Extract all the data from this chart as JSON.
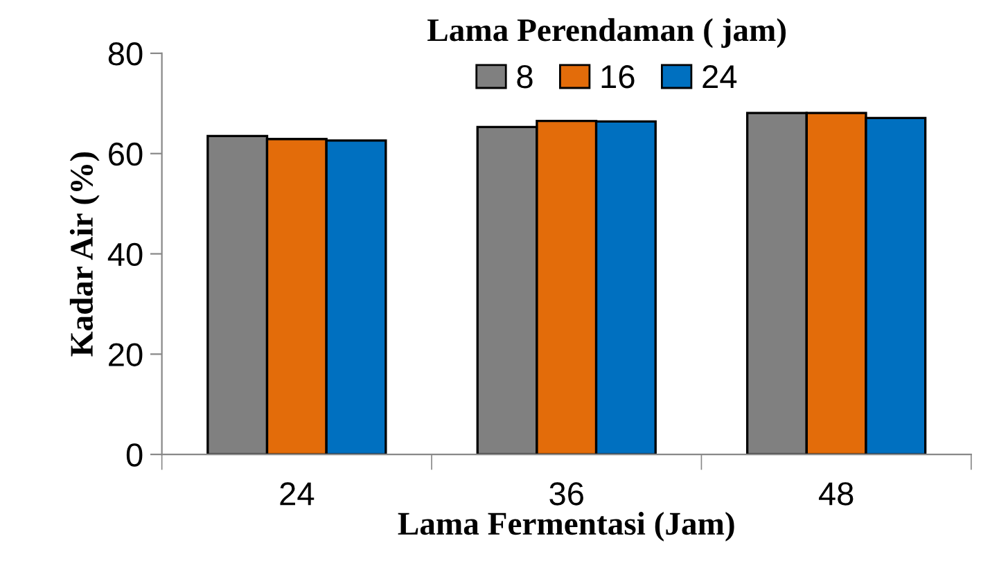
{
  "chart_data": {
    "type": "bar",
    "xlabel": "Lama Fermentasi (Jam)",
    "ylabel": "Kadar Air (%)",
    "legend_title": "Lama Perendaman ( jam)",
    "categories": [
      "24",
      "36",
      "48"
    ],
    "series": [
      {
        "name": "8",
        "color": "#808080",
        "values": [
          63.5,
          65.3,
          68.1
        ]
      },
      {
        "name": "16",
        "color": "#e36c0a",
        "values": [
          62.9,
          66.5,
          68.1
        ]
      },
      {
        "name": "24",
        "color": "#0070c0",
        "values": [
          62.6,
          66.4,
          67.1
        ]
      }
    ],
    "ylim": [
      0,
      80
    ],
    "yticks": [
      0,
      20,
      40,
      60,
      80
    ],
    "grid": false,
    "legend": "top"
  }
}
